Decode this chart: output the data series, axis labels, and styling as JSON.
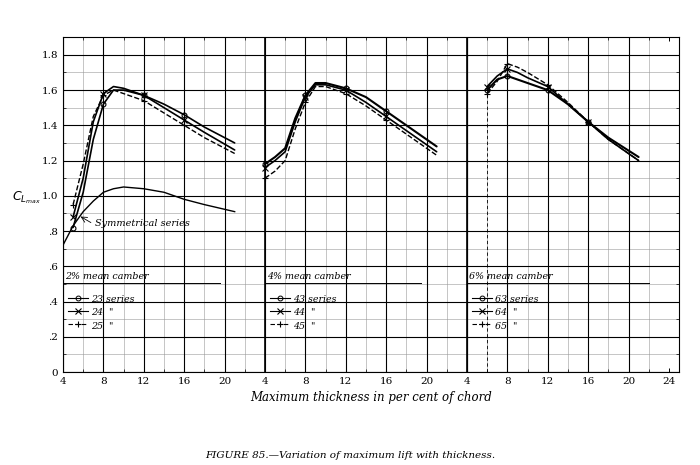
{
  "title": "FIGURE 85.—Variation of maximum lift with thickness.",
  "xlabel": "Maximum thickness in per cent of chord",
  "ylabel": "C_Lmax",
  "bg_color": "#ffffff",
  "grid_minor_color": "#aaaaaa",
  "grid_major_color": "#333333",
  "sym_x": [
    4,
    5,
    6,
    7,
    8,
    9,
    10,
    12,
    14,
    16,
    18,
    21
  ],
  "sym_y": [
    0.72,
    0.83,
    0.91,
    0.97,
    1.02,
    1.04,
    1.05,
    1.04,
    1.02,
    0.98,
    0.95,
    0.91
  ],
  "s23_x": [
    5,
    6,
    7,
    8,
    9,
    10,
    12,
    14,
    16,
    18,
    21
  ],
  "s23_y": [
    0.82,
    1.02,
    1.32,
    1.52,
    1.6,
    1.6,
    1.57,
    1.52,
    1.46,
    1.39,
    1.3
  ],
  "s24_x": [
    5,
    6,
    7,
    8,
    9,
    10,
    12,
    14,
    16,
    18,
    21
  ],
  "s24_y": [
    0.88,
    1.1,
    1.42,
    1.58,
    1.62,
    1.61,
    1.57,
    1.5,
    1.43,
    1.36,
    1.26
  ],
  "s25_x": [
    5,
    6,
    7,
    8,
    9,
    10,
    12,
    14,
    16,
    18,
    21
  ],
  "s25_y": [
    0.95,
    1.18,
    1.45,
    1.57,
    1.6,
    1.58,
    1.54,
    1.47,
    1.4,
    1.33,
    1.24
  ],
  "s43_x": [
    4,
    5,
    6,
    7,
    8,
    9,
    10,
    12,
    14,
    16,
    18,
    21
  ],
  "s43_y": [
    1.18,
    1.22,
    1.27,
    1.44,
    1.57,
    1.64,
    1.64,
    1.61,
    1.56,
    1.48,
    1.4,
    1.28
  ],
  "s44_x": [
    4,
    5,
    6,
    7,
    8,
    9,
    10,
    12,
    14,
    16,
    18,
    21
  ],
  "s44_y": [
    1.16,
    1.2,
    1.25,
    1.42,
    1.56,
    1.63,
    1.63,
    1.6,
    1.53,
    1.45,
    1.37,
    1.25
  ],
  "s45_x": [
    4,
    5,
    6,
    7,
    8,
    9,
    10,
    12,
    14,
    16,
    18,
    21
  ],
  "s45_y": [
    1.1,
    1.14,
    1.2,
    1.38,
    1.53,
    1.62,
    1.62,
    1.58,
    1.51,
    1.43,
    1.35,
    1.23
  ],
  "s63_x": [
    6,
    7,
    8,
    9,
    10,
    12,
    14,
    16,
    18,
    21
  ],
  "s63_y": [
    1.6,
    1.66,
    1.68,
    1.66,
    1.64,
    1.6,
    1.52,
    1.42,
    1.33,
    1.22
  ],
  "s64_x": [
    6,
    7,
    8,
    9,
    10,
    12,
    14,
    16,
    18,
    21
  ],
  "s64_y": [
    1.62,
    1.68,
    1.72,
    1.7,
    1.67,
    1.62,
    1.52,
    1.42,
    1.32,
    1.2
  ],
  "s65_x": [
    6,
    7,
    8,
    9,
    10,
    12,
    14,
    16,
    18,
    21
  ],
  "s65_y": [
    1.58,
    1.65,
    1.75,
    1.73,
    1.7,
    1.63,
    1.53,
    1.42,
    1.32,
    1.2
  ],
  "off1": 0,
  "off2": 20,
  "off3": 40,
  "xlim": [
    4,
    65
  ],
  "ylim": [
    0,
    1.9
  ]
}
